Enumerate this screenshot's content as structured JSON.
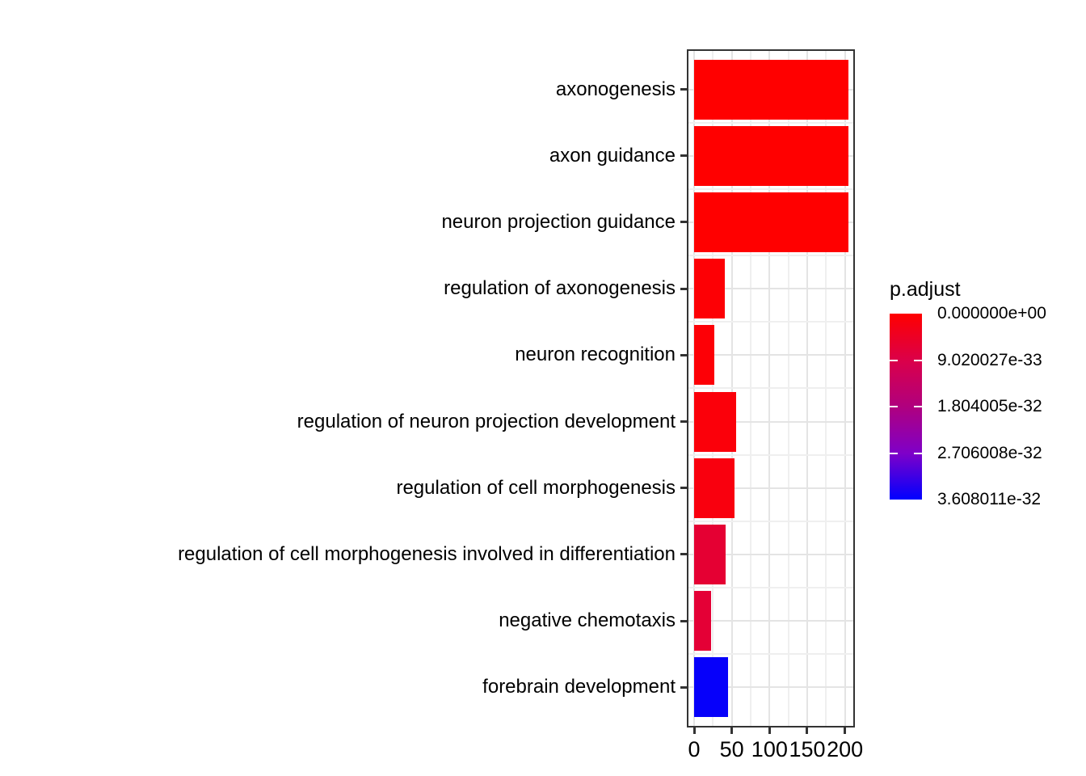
{
  "chart_data": {
    "type": "bar",
    "orientation": "horizontal",
    "title": "",
    "xlabel": "",
    "ylabel": "",
    "categories": [
      "axonogenesis",
      "axon guidance",
      "neuron projection guidance",
      "regulation of axonogenesis",
      "neuron recognition",
      "regulation of neuron projection development",
      "regulation of cell morphogenesis",
      "regulation of cell morphogenesis involved in differentiation",
      "negative chemotaxis",
      "forebrain development"
    ],
    "values": [
      205,
      205,
      205,
      41,
      27,
      56,
      54,
      42,
      23,
      45
    ],
    "bar_colors": [
      "#ff0000",
      "#ff0000",
      "#ff0000",
      "#fd0005",
      "#fd0006",
      "#fb000a",
      "#f9000e",
      "#e50033",
      "#e40036",
      "#0600fa"
    ],
    "x_ticks": [
      0,
      50,
      100,
      150,
      200
    ],
    "x_tick_labels": [
      "0",
      "50",
      "100",
      "150",
      "200"
    ],
    "x_minor_ticks": [
      25,
      75,
      125,
      175
    ],
    "xlim": [
      -10,
      213
    ],
    "grid": true,
    "colors": {
      "panel_background": "#ffffff",
      "grid_major": "#e4e4e4",
      "grid_minor": "#efefef",
      "panel_border": "#333333",
      "tick": "#333333",
      "text": "#000000"
    },
    "legend": {
      "title": "p.adjust",
      "type": "colorbar",
      "position": "right",
      "labels": [
        "0.000000e+00",
        "9.020027e-33",
        "1.804005e-32",
        "2.706008e-32",
        "3.608011e-32"
      ],
      "gradient_stops": [
        "#ff0000",
        "#db0049",
        "#b0007e",
        "#7f00c8",
        "#0000ff"
      ],
      "low_color": "#ff0000",
      "high_color": "#0000ff"
    }
  }
}
